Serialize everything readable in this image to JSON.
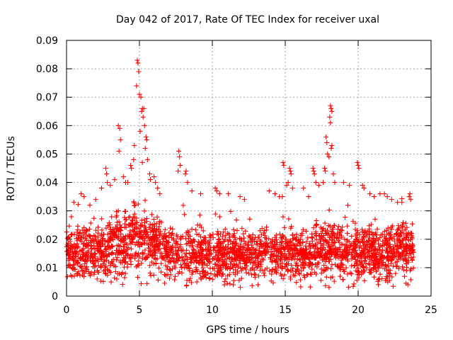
{
  "chart_data": {
    "type": "scatter",
    "title": "Day 042 of 2017, Rate Of TEC Index for receiver uxal",
    "xlabel": "GPS time / hours",
    "ylabel": "ROTI / TECUs",
    "xlim": [
      0,
      25
    ],
    "ylim": [
      0,
      0.09
    ],
    "xticks": [
      0,
      5,
      10,
      15,
      20,
      25
    ],
    "xtick_labels": [
      "0",
      "5",
      "10",
      "15",
      "20",
      "25"
    ],
    "yticks": [
      0,
      0.01,
      0.02,
      0.03,
      0.04,
      0.05,
      0.06,
      0.07,
      0.08,
      0.09
    ],
    "ytick_labels": [
      "0",
      "0.01",
      "0.02",
      "0.03",
      "0.04",
      "0.05",
      "0.06",
      "0.07",
      "0.08",
      "0.09"
    ],
    "grid": true,
    "marker": "+",
    "color": "#ff0000",
    "series": [
      {
        "name": "ROTI",
        "x_range": [
          0,
          23.8
        ],
        "baseline_range": [
          0.005,
          0.025
        ],
        "points": [
          [
            3.55,
            0.06
          ],
          [
            3.65,
            0.059
          ],
          [
            3.7,
            0.055
          ],
          [
            3.6,
            0.051
          ],
          [
            4.85,
            0.083
          ],
          [
            4.9,
            0.082
          ],
          [
            4.95,
            0.079
          ],
          [
            4.8,
            0.074
          ],
          [
            5.0,
            0.071
          ],
          [
            5.1,
            0.07
          ],
          [
            5.2,
            0.066
          ],
          [
            5.3,
            0.066
          ],
          [
            5.15,
            0.065
          ],
          [
            5.25,
            0.063
          ],
          [
            5.35,
            0.06
          ],
          [
            5.05,
            0.058
          ],
          [
            5.45,
            0.056
          ],
          [
            5.5,
            0.055
          ],
          [
            4.65,
            0.053
          ],
          [
            5.4,
            0.052
          ],
          [
            4.6,
            0.048
          ],
          [
            5.55,
            0.048
          ],
          [
            5.2,
            0.047
          ],
          [
            4.4,
            0.046
          ],
          [
            4.45,
            0.045
          ],
          [
            5.7,
            0.043
          ],
          [
            5.75,
            0.041
          ],
          [
            4.2,
            0.04
          ],
          [
            2.7,
            0.045
          ],
          [
            2.75,
            0.043
          ],
          [
            2.8,
            0.04
          ],
          [
            3.0,
            0.039
          ],
          [
            3.3,
            0.041
          ],
          [
            3.9,
            0.042
          ],
          [
            4.05,
            0.04
          ],
          [
            6.0,
            0.042
          ],
          [
            6.1,
            0.04
          ],
          [
            6.25,
            0.038
          ],
          [
            6.4,
            0.036
          ],
          [
            7.7,
            0.051
          ],
          [
            7.75,
            0.049
          ],
          [
            7.8,
            0.046
          ],
          [
            7.65,
            0.044
          ],
          [
            8.2,
            0.044
          ],
          [
            8.15,
            0.043
          ],
          [
            8.3,
            0.04
          ],
          [
            8.6,
            0.037
          ],
          [
            9.2,
            0.036
          ],
          [
            10.2,
            0.038
          ],
          [
            10.3,
            0.037
          ],
          [
            10.5,
            0.036
          ],
          [
            11.1,
            0.036
          ],
          [
            11.9,
            0.035
          ],
          [
            12.2,
            0.034
          ],
          [
            13.9,
            0.037
          ],
          [
            14.3,
            0.036
          ],
          [
            14.6,
            0.035
          ],
          [
            14.8,
            0.035
          ],
          [
            14.85,
            0.047
          ],
          [
            14.9,
            0.046
          ],
          [
            15.3,
            0.045
          ],
          [
            15.35,
            0.044
          ],
          [
            15.4,
            0.043
          ],
          [
            15.2,
            0.04
          ],
          [
            15.1,
            0.039
          ],
          [
            15.5,
            0.038
          ],
          [
            16.25,
            0.038
          ],
          [
            16.6,
            0.035
          ],
          [
            16.9,
            0.045
          ],
          [
            16.95,
            0.044
          ],
          [
            17.0,
            0.043
          ],
          [
            17.1,
            0.04
          ],
          [
            17.3,
            0.039
          ],
          [
            18.1,
            0.067
          ],
          [
            18.15,
            0.066
          ],
          [
            18.2,
            0.065
          ],
          [
            18.05,
            0.063
          ],
          [
            18.1,
            0.061
          ],
          [
            17.8,
            0.056
          ],
          [
            17.85,
            0.054
          ],
          [
            18.2,
            0.053
          ],
          [
            18.15,
            0.052
          ],
          [
            17.9,
            0.05
          ],
          [
            18.0,
            0.049
          ],
          [
            17.7,
            0.045
          ],
          [
            17.75,
            0.044
          ],
          [
            18.3,
            0.043
          ],
          [
            17.6,
            0.04
          ],
          [
            18.4,
            0.04
          ],
          [
            19.0,
            0.04
          ],
          [
            19.4,
            0.039
          ],
          [
            19.95,
            0.047
          ],
          [
            20.0,
            0.046
          ],
          [
            20.05,
            0.045
          ],
          [
            20.3,
            0.039
          ],
          [
            20.4,
            0.038
          ],
          [
            20.8,
            0.036
          ],
          [
            21.1,
            0.035
          ],
          [
            21.5,
            0.036
          ],
          [
            21.8,
            0.036
          ],
          [
            22.0,
            0.035
          ],
          [
            22.3,
            0.034
          ],
          [
            22.7,
            0.033
          ],
          [
            23.0,
            0.033
          ],
          [
            23.5,
            0.035
          ],
          [
            23.55,
            0.036
          ],
          [
            23.6,
            0.034
          ],
          [
            1.0,
            0.036
          ],
          [
            1.2,
            0.035
          ],
          [
            0.5,
            0.033
          ],
          [
            2.0,
            0.034
          ],
          [
            2.4,
            0.038
          ],
          [
            1.6,
            0.032
          ]
        ]
      }
    ]
  }
}
